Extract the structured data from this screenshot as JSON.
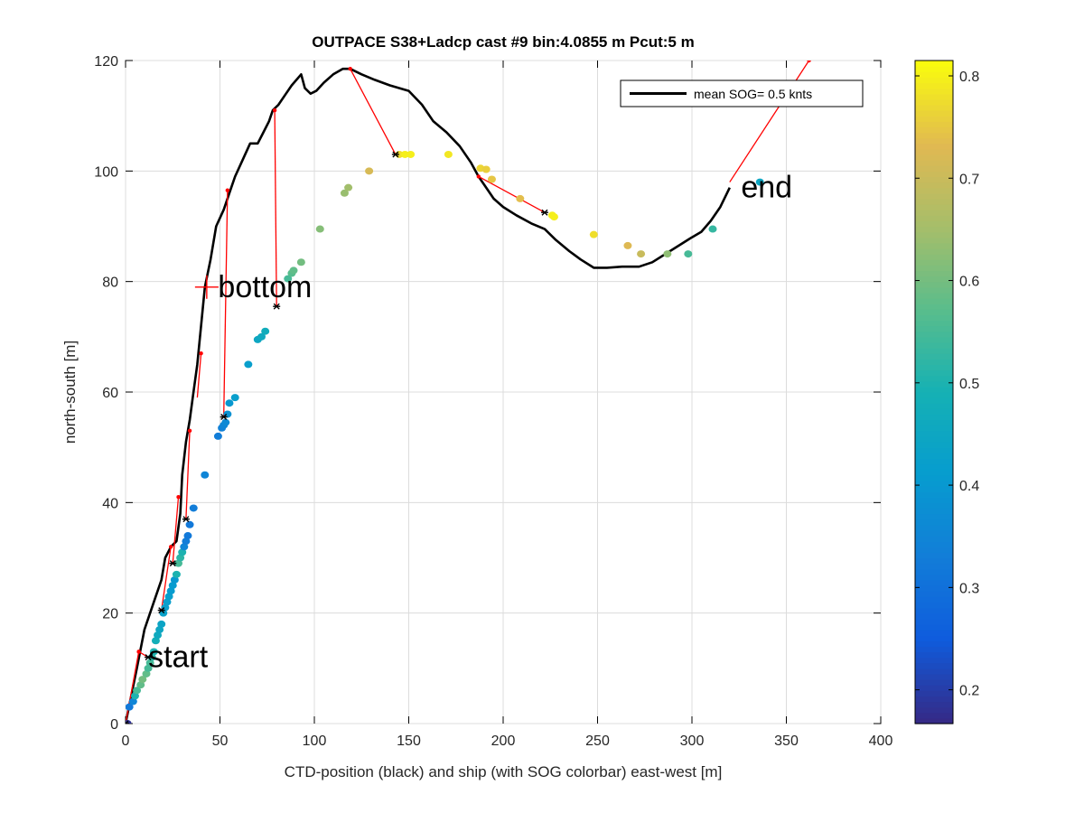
{
  "chart_data": {
    "type": "scatter",
    "title": "OUTPACE S38+Ladcp cast #9 bin:4.0855 m  Pcut:5 m",
    "xlabel": "CTD-position (black) and ship (with SOG colorbar) east-west [m]",
    "ylabel": "north-south [m]",
    "xlim": [
      0,
      400
    ],
    "ylim": [
      0,
      120
    ],
    "xticks": [
      0,
      50,
      100,
      150,
      200,
      250,
      300,
      350,
      400
    ],
    "yticks": [
      0,
      20,
      40,
      60,
      80,
      100,
      120
    ],
    "grid": true,
    "legend": {
      "position": "top-right",
      "entries": [
        "mean SOG=  0.5 knts"
      ]
    },
    "colorbar": {
      "colormap": "parula",
      "range": [
        0.167,
        0.815
      ],
      "ticks": [
        0.2,
        0.3,
        0.4,
        0.5,
        0.6,
        0.7,
        0.8
      ]
    },
    "annotations": [
      {
        "text": "start",
        "x": 12,
        "y": 12
      },
      {
        "text": "bottom",
        "x": 49,
        "y": 79,
        "marker": "+",
        "marker_x": 43,
        "marker_y": 79
      },
      {
        "text": "end",
        "x": 326,
        "y": 97
      }
    ],
    "ctd_track": {
      "name": "CTD-position",
      "color": "#000000",
      "x": [
        0,
        6,
        10,
        15,
        19,
        21,
        24,
        27,
        29,
        30,
        32,
        34,
        36,
        38,
        40,
        42,
        45,
        48,
        52,
        55,
        58,
        62,
        66,
        70,
        73,
        76,
        78,
        81,
        85,
        88,
        93,
        95,
        98,
        101,
        105,
        110,
        115,
        119,
        125,
        132,
        140,
        150,
        157,
        163,
        170,
        177,
        183,
        187,
        190,
        195,
        200,
        207,
        215,
        222,
        228,
        235,
        241,
        248,
        255,
        263,
        272,
        279,
        286,
        293,
        300,
        305,
        310,
        315,
        320
      ],
      "y": [
        0,
        10,
        17,
        22,
        26,
        30,
        32,
        33,
        38,
        45,
        51,
        55,
        60,
        65,
        72,
        79,
        84,
        90,
        93,
        96,
        99,
        102,
        105,
        105,
        107,
        109,
        111,
        112,
        114,
        115.5,
        117.5,
        115,
        114,
        114.5,
        116,
        117.5,
        118.5,
        118.5,
        117.5,
        116.5,
        115.5,
        114.5,
        112,
        109,
        107,
        104.5,
        101.5,
        99,
        97.5,
        95,
        93.5,
        92,
        90.5,
        89.5,
        87.5,
        85.5,
        84,
        82.5,
        82.5,
        82.7,
        82.7,
        83.5,
        85,
        86.5,
        88,
        89,
        91,
        93.5,
        97
      ]
    },
    "connectors": {
      "name": "CTD to ship",
      "color": "#ff0000",
      "segments": [
        [
          [
            0,
            0
          ],
          [
            7,
            13
          ]
        ],
        [
          [
            12,
            12
          ],
          [
            7,
            13
          ]
        ],
        [
          [
            19,
            20.5
          ],
          [
            24,
            32
          ]
        ],
        [
          [
            25,
            29
          ],
          [
            28,
            41
          ]
        ],
        [
          [
            32,
            37
          ],
          [
            34,
            53
          ]
        ],
        [
          [
            38,
            59
          ],
          [
            40,
            67
          ]
        ],
        [
          [
            52,
            55.5
          ],
          [
            54,
            96.5
          ]
        ],
        [
          [
            80,
            75.5
          ],
          [
            79,
            111
          ]
        ],
        [
          [
            143,
            103
          ],
          [
            119,
            118.5
          ]
        ],
        [
          [
            222,
            92.5
          ],
          [
            187,
            99
          ]
        ],
        [
          [
            320,
            98
          ],
          [
            362,
            120
          ]
        ]
      ]
    },
    "ship_track": {
      "name": "ship",
      "color_by": "SOG",
      "x": [
        1,
        2,
        4,
        5,
        6,
        8,
        9,
        11,
        12,
        13,
        14,
        15,
        16,
        17,
        18,
        19,
        20,
        21,
        22,
        23,
        24,
        25,
        26,
        27,
        28,
        29,
        30,
        31,
        32,
        33,
        34,
        36,
        42,
        49,
        51,
        52,
        53,
        54,
        55,
        58,
        65,
        70,
        72,
        74,
        86,
        88,
        89,
        93,
        103,
        116,
        118,
        129,
        145,
        148,
        151,
        171,
        188,
        191,
        194,
        209,
        226,
        227,
        248,
        266,
        273,
        287,
        298,
        311,
        336
      ],
      "y": [
        0,
        3,
        4,
        5,
        6,
        7,
        8,
        9,
        10,
        11,
        12,
        13,
        15,
        16,
        17,
        18,
        20,
        21,
        22,
        23,
        24,
        25,
        26,
        27,
        29,
        30,
        31,
        32,
        33,
        34,
        36,
        39,
        45,
        52,
        53.5,
        54,
        54.5,
        56,
        58,
        59,
        65,
        69.5,
        70,
        71,
        80.5,
        81.5,
        82,
        83.5,
        89.5,
        96,
        97,
        100,
        103,
        103,
        103,
        103,
        100.5,
        100.3,
        98.5,
        95,
        92,
        91.7,
        88.5,
        86.5,
        85,
        85,
        85,
        89.5,
        98
      ],
      "sog": [
        0.18,
        0.32,
        0.35,
        0.5,
        0.55,
        0.58,
        0.6,
        0.58,
        0.55,
        0.55,
        0.52,
        0.5,
        0.48,
        0.46,
        0.45,
        0.44,
        0.43,
        0.42,
        0.42,
        0.42,
        0.41,
        0.41,
        0.4,
        0.5,
        0.55,
        0.52,
        0.5,
        0.35,
        0.33,
        0.32,
        0.32,
        0.33,
        0.35,
        0.33,
        0.34,
        0.35,
        0.36,
        0.38,
        0.4,
        0.42,
        0.42,
        0.45,
        0.46,
        0.47,
        0.55,
        0.57,
        0.58,
        0.6,
        0.62,
        0.64,
        0.65,
        0.72,
        0.78,
        0.8,
        0.8,
        0.79,
        0.77,
        0.76,
        0.75,
        0.74,
        0.8,
        0.8,
        0.78,
        0.73,
        0.7,
        0.63,
        0.55,
        0.53,
        0.45
      ]
    },
    "black_markers": {
      "name": "bin markers",
      "x": [
        0,
        12,
        19,
        25,
        32,
        52,
        80,
        143,
        222
      ],
      "y": [
        0,
        12,
        20.5,
        29,
        37,
        55.5,
        75.5,
        103,
        92.5
      ]
    }
  }
}
